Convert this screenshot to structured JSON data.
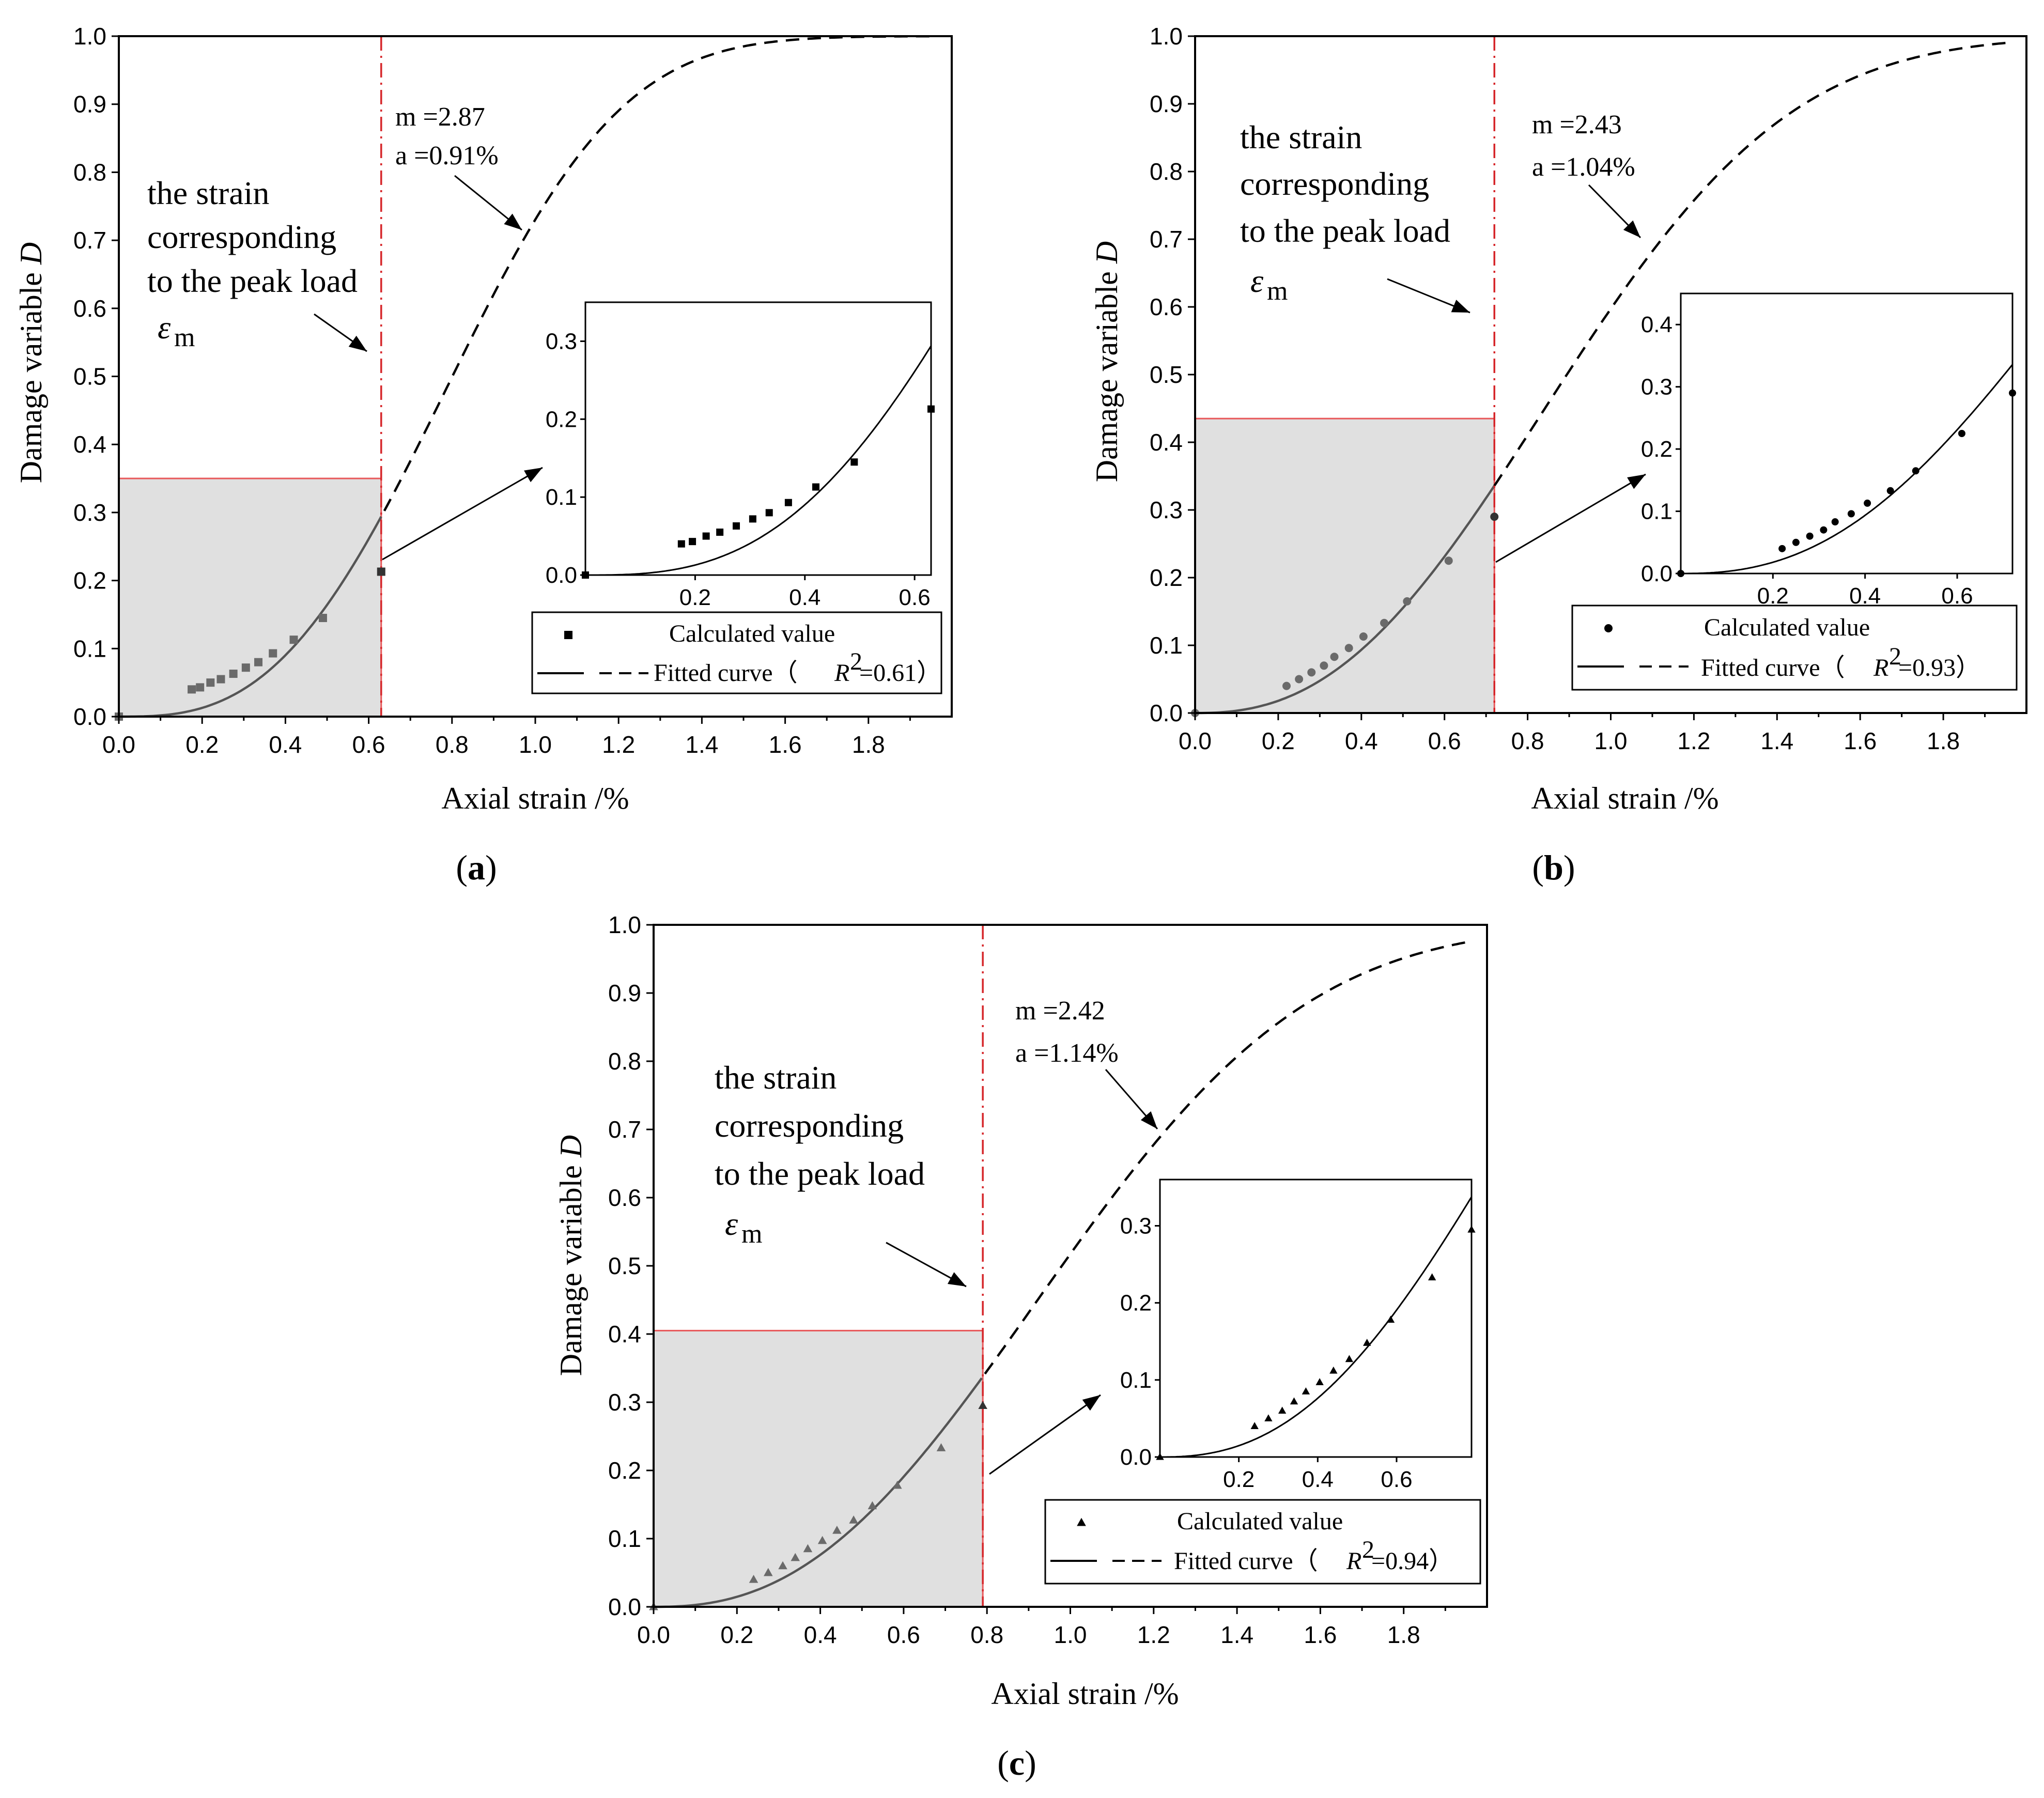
{
  "figure": {
    "panel_labels": [
      "(a)",
      "(b)",
      "(c)"
    ]
  },
  "chart_data": [
    {
      "type": "scatter",
      "panel": "a",
      "label": "a",
      "xlabel": "Axial strain /%",
      "ylabel": "Damage variable D",
      "xlim": [
        0,
        2.0
      ],
      "ylim": [
        0,
        1.0
      ],
      "x_ticks": [
        "0.0",
        "0.2",
        "0.4",
        "0.6",
        "0.8",
        "1.0",
        "1.2",
        "1.4",
        "1.6",
        "1.8"
      ],
      "y_ticks": [
        "0.0",
        "0.1",
        "0.2",
        "0.3",
        "0.4",
        "0.5",
        "0.6",
        "0.7",
        "0.8",
        "0.9",
        "1.0"
      ],
      "peak_strain": 0.63,
      "shaded_height": 0.35,
      "annotation_lines": [
        "the strain",
        "corresponding",
        "to the peak load"
      ],
      "epsilon_label": "ε",
      "epsilon_sub": "m",
      "m_label": "m =2.87",
      "a_label": "a =0.91%",
      "fit": {
        "m": 2.87,
        "a": 0.91
      },
      "marker": "square",
      "series": [
        {
          "name": "Calculated value",
          "x": [
            0.0,
            0.175,
            0.195,
            0.22,
            0.245,
            0.275,
            0.305,
            0.335,
            0.37,
            0.42,
            0.49,
            0.63
          ],
          "y": [
            0.0,
            0.04,
            0.043,
            0.05,
            0.055,
            0.063,
            0.072,
            0.08,
            0.093,
            0.113,
            0.145,
            0.213
          ]
        }
      ],
      "legend": {
        "scatter_label": "Calculated value",
        "fit_label": "Fitted curve（",
        "r2_value": "=0.61）"
      },
      "inset": {
        "xlim": [
          0,
          0.63
        ],
        "ylim": [
          0,
          0.35
        ],
        "x_ticks": [
          "0.2",
          "0.4",
          "0.6"
        ],
        "y_ticks": [
          "0.0",
          "0.1",
          "0.2",
          "0.3"
        ]
      }
    },
    {
      "type": "scatter",
      "panel": "b",
      "label": "b",
      "xlabel": "Axial strain /%",
      "ylabel": "Damage variable D",
      "xlim": [
        0,
        2.0
      ],
      "ylim": [
        0,
        1.0
      ],
      "x_ticks": [
        "0.0",
        "0.2",
        "0.4",
        "0.6",
        "0.8",
        "1.0",
        "1.2",
        "1.4",
        "1.6",
        "1.8"
      ],
      "y_ticks": [
        "0.0",
        "0.1",
        "0.2",
        "0.3",
        "0.4",
        "0.5",
        "0.6",
        "0.7",
        "0.8",
        "0.9",
        "1.0"
      ],
      "peak_strain": 0.72,
      "shaded_height": 0.435,
      "annotation_lines": [
        "the strain",
        "corresponding",
        "to the peak load"
      ],
      "epsilon_label": "ε",
      "epsilon_sub": "m",
      "m_label": "m =2.43",
      "a_label": "a =1.04%",
      "fit": {
        "m": 2.43,
        "a": 1.04
      },
      "marker": "circle",
      "series": [
        {
          "name": "Calculated value",
          "x": [
            0.0,
            0.22,
            0.25,
            0.28,
            0.31,
            0.335,
            0.37,
            0.405,
            0.455,
            0.51,
            0.61,
            0.72
          ],
          "y": [
            0.0,
            0.04,
            0.05,
            0.06,
            0.07,
            0.083,
            0.096,
            0.113,
            0.133,
            0.165,
            0.225,
            0.29
          ]
        }
      ],
      "legend": {
        "scatter_label": "Calculated value",
        "fit_label": "Fitted curve（",
        "r2_value": "=0.93）"
      },
      "inset": {
        "xlim": [
          0,
          0.72
        ],
        "ylim": [
          0,
          0.45
        ],
        "x_ticks": [
          "0.2",
          "0.4",
          "0.6"
        ],
        "y_ticks": [
          "0.0",
          "0.1",
          "0.2",
          "0.3",
          "0.4"
        ]
      }
    },
    {
      "type": "scatter",
      "panel": "c",
      "label": "c",
      "xlabel": "Axial strain /%",
      "ylabel": "Damage variable D",
      "xlim": [
        0,
        2.0
      ],
      "ylim": [
        0,
        1.0
      ],
      "x_ticks": [
        "0.0",
        "0.2",
        "0.4",
        "0.6",
        "0.8",
        "1.0",
        "1.2",
        "1.4",
        "1.6",
        "1.8"
      ],
      "y_ticks": [
        "0.0",
        "0.1",
        "0.2",
        "0.3",
        "0.4",
        "0.5",
        "0.6",
        "0.7",
        "0.8",
        "0.9",
        "1.0"
      ],
      "peak_strain": 0.79,
      "shaded_height": 0.405,
      "annotation_lines": [
        "the strain",
        "corresponding",
        "to the peak load"
      ],
      "epsilon_label": "ε",
      "epsilon_sub": "m",
      "m_label": "m =2.42",
      "a_label": "a =1.14%",
      "fit": {
        "m": 2.42,
        "a": 1.14
      },
      "marker": "triangle",
      "series": [
        {
          "name": "Calculated value",
          "x": [
            0.0,
            0.24,
            0.275,
            0.31,
            0.34,
            0.37,
            0.405,
            0.44,
            0.48,
            0.525,
            0.585,
            0.69,
            0.79
          ],
          "y": [
            0.0,
            0.04,
            0.05,
            0.06,
            0.072,
            0.085,
            0.097,
            0.112,
            0.127,
            0.148,
            0.178,
            0.233,
            0.295
          ]
        }
      ],
      "legend": {
        "scatter_label": "Calculated value",
        "fit_label": "Fitted curve（",
        "r2_value": "=0.94）"
      },
      "inset": {
        "xlim": [
          0,
          0.79
        ],
        "ylim": [
          0,
          0.36
        ],
        "x_ticks": [
          "0.2",
          "0.4",
          "0.6"
        ],
        "y_ticks": [
          "0.0",
          "0.1",
          "0.2",
          "0.3"
        ]
      }
    }
  ]
}
